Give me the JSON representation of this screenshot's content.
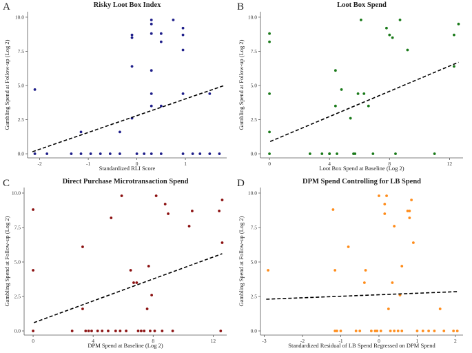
{
  "chart_data": [
    {
      "type": "scatter",
      "letter": "A",
      "title": "Risky Loot Box Index",
      "xlabel": "Standardized RLI Score",
      "ylabel": "Gambling Spend at Follow-up (Log 2)",
      "xlim": [
        -2.25,
        1.85
      ],
      "ylim": [
        -0.3,
        10.4
      ],
      "xticks": [
        -2,
        -1,
        0,
        1
      ],
      "xtick_labels": [
        "-2",
        "-1",
        "0",
        "1"
      ],
      "yticks": [
        0,
        2.5,
        5,
        7.5,
        10
      ],
      "ytick_labels": [
        "0.0",
        "2.5",
        "5.0",
        "7.5",
        "10.0"
      ],
      "color": "#1f1f8a",
      "points": [
        [
          -2.1,
          4.7
        ],
        [
          -2.1,
          0
        ],
        [
          -1.85,
          0
        ],
        [
          -1.35,
          0
        ],
        [
          -1.15,
          1.6
        ],
        [
          -1.15,
          0
        ],
        [
          -0.95,
          0
        ],
        [
          -0.75,
          0
        ],
        [
          -0.55,
          0
        ],
        [
          -0.35,
          1.6
        ],
        [
          -0.35,
          0
        ],
        [
          -0.1,
          8.7
        ],
        [
          -0.1,
          8.5
        ],
        [
          -0.1,
          6.4
        ],
        [
          -0.1,
          2.6
        ],
        [
          0.0,
          0
        ],
        [
          0.15,
          0
        ],
        [
          0.3,
          9.8
        ],
        [
          0.3,
          9.5
        ],
        [
          0.3,
          8.8
        ],
        [
          0.3,
          6.1
        ],
        [
          0.3,
          4.4
        ],
        [
          0.3,
          3.5
        ],
        [
          0.3,
          0
        ],
        [
          0.5,
          8.8
        ],
        [
          0.5,
          8.2
        ],
        [
          0.5,
          3.5
        ],
        [
          0.5,
          0
        ],
        [
          0.75,
          9.8
        ],
        [
          0.95,
          9.2
        ],
        [
          0.95,
          8.7
        ],
        [
          0.95,
          7.6
        ],
        [
          0.95,
          4.4
        ],
        [
          0.95,
          0
        ],
        [
          1.15,
          0
        ],
        [
          1.3,
          0
        ],
        [
          1.5,
          4.4
        ],
        [
          1.5,
          0
        ],
        [
          1.7,
          0
        ]
      ],
      "trend": [
        [
          -2.15,
          0.15
        ],
        [
          1.8,
          5.0
        ]
      ]
    },
    {
      "type": "scatter",
      "letter": "B",
      "title": "Loot Box Spend",
      "xlabel": "Loot Box Spend at Baseline (Log 2)",
      "ylabel": "Gambling Spend at Follow-up (Log 2)",
      "xlim": [
        -0.6,
        12.9
      ],
      "ylim": [
        -0.3,
        10.4
      ],
      "xticks": [
        0,
        4,
        8,
        12
      ],
      "xtick_labels": [
        "0",
        "4",
        "8",
        "12"
      ],
      "yticks": [
        0,
        2.5,
        5,
        7.5,
        10
      ],
      "ytick_labels": [
        "0.0",
        "2.5",
        "5.0",
        "7.5",
        "10.0"
      ],
      "color": "#1a7a1a",
      "points": [
        [
          0,
          8.8
        ],
        [
          0,
          8.2
        ],
        [
          0,
          4.4
        ],
        [
          0,
          1.6
        ],
        [
          0,
          0
        ],
        [
          2.7,
          0
        ],
        [
          3.5,
          0
        ],
        [
          4.0,
          0
        ],
        [
          4.5,
          0
        ],
        [
          4.4,
          6.1
        ],
        [
          4.8,
          4.7
        ],
        [
          4.4,
          3.5
        ],
        [
          4.0,
          0
        ],
        [
          5.4,
          2.6
        ],
        [
          5.6,
          0
        ],
        [
          5.7,
          0
        ],
        [
          5.9,
          4.4
        ],
        [
          6.1,
          9.8
        ],
        [
          6.3,
          4.4
        ],
        [
          6.6,
          3.5
        ],
        [
          6.9,
          0
        ],
        [
          7.8,
          9.2
        ],
        [
          8.0,
          8.7
        ],
        [
          8.2,
          8.5
        ],
        [
          8.7,
          9.8
        ],
        [
          9.2,
          7.6
        ],
        [
          8.4,
          0
        ],
        [
          11.0,
          0
        ],
        [
          12.3,
          8.7
        ],
        [
          12.3,
          6.4
        ],
        [
          12.6,
          9.5
        ]
      ],
      "trend": [
        [
          0.05,
          0.9
        ],
        [
          12.6,
          6.7
        ]
      ]
    },
    {
      "type": "scatter",
      "letter": "C",
      "title": "Direct Purchase Microtransaction Spend",
      "xlabel": "DPM Spend at Baseline (Log 2)",
      "ylabel": "Gambling Spend at Follow-up (Log 2)",
      "xlim": [
        -0.6,
        12.9
      ],
      "ylim": [
        -0.3,
        10.4
      ],
      "xticks": [
        0,
        4,
        8,
        12
      ],
      "xtick_labels": [
        "0",
        "4",
        "8",
        "12"
      ],
      "yticks": [
        0,
        2.5,
        5,
        7.5,
        10
      ],
      "ytick_labels": [
        "0.0",
        "2.5",
        "5.0",
        "7.5",
        "10.0"
      ],
      "color": "#8b1010",
      "points": [
        [
          0,
          8.8
        ],
        [
          0,
          4.4
        ],
        [
          0,
          0
        ],
        [
          2.6,
          0
        ],
        [
          3.3,
          6.1
        ],
        [
          3.3,
          1.6
        ],
        [
          3.5,
          0
        ],
        [
          3.7,
          0
        ],
        [
          3.9,
          0
        ],
        [
          4.3,
          0
        ],
        [
          4.6,
          0
        ],
        [
          5.0,
          0
        ],
        [
          5.2,
          8.2
        ],
        [
          5.5,
          0
        ],
        [
          5.8,
          0
        ],
        [
          5.9,
          9.8
        ],
        [
          6.2,
          0
        ],
        [
          6.5,
          4.4
        ],
        [
          6.7,
          3.5
        ],
        [
          6.9,
          3.5
        ],
        [
          7.0,
          0
        ],
        [
          7.2,
          0
        ],
        [
          7.4,
          0
        ],
        [
          7.6,
          1.6
        ],
        [
          7.7,
          4.7
        ],
        [
          7.8,
          0
        ],
        [
          8.2,
          9.8
        ],
        [
          8.6,
          0
        ],
        [
          8.8,
          9.2
        ],
        [
          9.0,
          8.5
        ],
        [
          9.3,
          0
        ],
        [
          10.4,
          7.6
        ],
        [
          10.6,
          8.7
        ],
        [
          12.4,
          8.7
        ],
        [
          12.6,
          9.5
        ],
        [
          12.6,
          6.4
        ],
        [
          12.5,
          0
        ],
        [
          7.9,
          2.6
        ],
        [
          8.1,
          0
        ]
      ],
      "trend": [
        [
          0.05,
          0.6
        ],
        [
          12.6,
          5.6
        ]
      ]
    },
    {
      "type": "scatter",
      "letter": "D",
      "title": "DPM Spend Controlling for LB Spend",
      "xlabel": "Standardized Residual of LB Spend Regressed on DPM Spend",
      "ylabel": "Gambling Spend at Follow-up (Log 2)",
      "xlim": [
        -3.1,
        2.2
      ],
      "ylim": [
        -0.3,
        10.4
      ],
      "xticks": [
        -3,
        -2,
        -1,
        0,
        1,
        2
      ],
      "xtick_labels": [
        "-3",
        "-2",
        "-1",
        "0",
        "1",
        "2"
      ],
      "yticks": [
        0,
        2.5,
        5,
        7.5,
        10
      ],
      "ytick_labels": [
        "0.0",
        "2.5",
        "5.0",
        "7.5",
        "10.0"
      ],
      "color": "#ff8c1a",
      "points": [
        [
          -2.9,
          4.4
        ],
        [
          -1.2,
          8.8
        ],
        [
          -1.15,
          4.4
        ],
        [
          -1.15,
          0
        ],
        [
          -1.1,
          0
        ],
        [
          -1.0,
          0
        ],
        [
          -0.8,
          6.1
        ],
        [
          -0.6,
          0
        ],
        [
          -0.5,
          0
        ],
        [
          -0.35,
          4.4
        ],
        [
          -0.38,
          3.5
        ],
        [
          -0.2,
          0
        ],
        [
          -0.1,
          0
        ],
        [
          -0.05,
          0
        ],
        [
          0.0,
          9.8
        ],
        [
          0.05,
          0
        ],
        [
          0.15,
          9.2
        ],
        [
          0.2,
          9.8
        ],
        [
          0.15,
          8.5
        ],
        [
          0.25,
          1.6
        ],
        [
          0.3,
          0
        ],
        [
          0.35,
          3.5
        ],
        [
          0.4,
          7.6
        ],
        [
          0.4,
          0
        ],
        [
          0.5,
          0
        ],
        [
          0.55,
          2.6
        ],
        [
          0.6,
          4.7
        ],
        [
          0.6,
          0
        ],
        [
          0.75,
          8.7
        ],
        [
          0.8,
          8.7
        ],
        [
          0.8,
          8.2
        ],
        [
          0.85,
          9.5
        ],
        [
          0.9,
          6.4
        ],
        [
          1.0,
          0
        ],
        [
          1.15,
          0
        ],
        [
          1.3,
          0
        ],
        [
          1.45,
          0
        ],
        [
          1.6,
          1.6
        ],
        [
          1.7,
          0
        ],
        [
          1.95,
          0
        ],
        [
          2.05,
          0
        ]
      ],
      "trend": [
        [
          -2.95,
          2.3
        ],
        [
          2.05,
          2.85
        ]
      ]
    }
  ]
}
